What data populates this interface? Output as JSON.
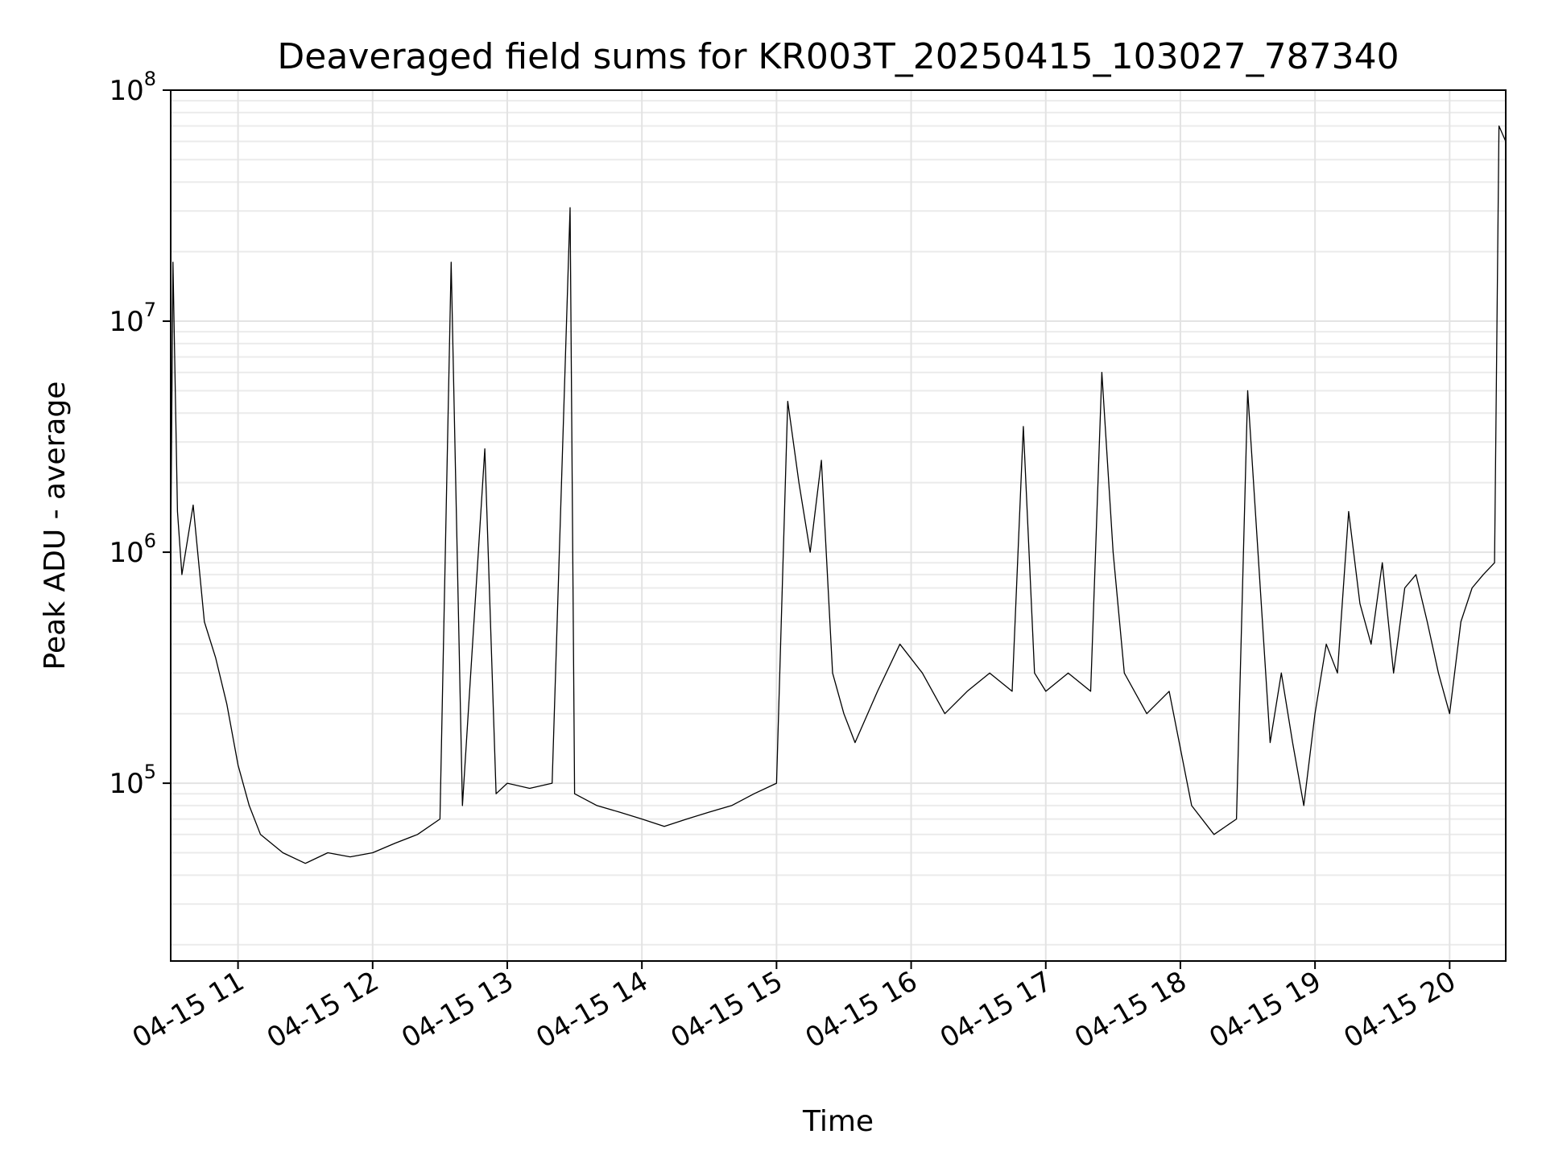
{
  "chart_data": {
    "type": "line",
    "title": "Deaveraged field sums for KR003T_20250415_103027_787340",
    "xlabel": "Time",
    "ylabel": "Peak ADU - average",
    "yscale": "log",
    "ylim": [
      17000,
      100000000
    ],
    "xlim": [
      "2025-04-15 10:30",
      "2025-04-15 20:25"
    ],
    "grid": true,
    "line_color": "#000000",
    "x_ticks": [
      "04-15 11",
      "04-15 12",
      "04-15 13",
      "04-15 14",
      "04-15 15",
      "04-15 16",
      "04-15 17",
      "04-15 18",
      "04-15 19",
      "04-15 20"
    ],
    "y_ticks": [
      {
        "value": 100000,
        "base": "10",
        "exp": "5"
      },
      {
        "value": 1000000,
        "base": "10",
        "exp": "6"
      },
      {
        "value": 10000000,
        "base": "10",
        "exp": "7"
      },
      {
        "value": 100000000,
        "base": "10",
        "exp": "8"
      }
    ],
    "series": [
      {
        "x": [
          "2025-04-15 10:30",
          "2025-04-15 10:31",
          "2025-04-15 10:33",
          "2025-04-15 10:35",
          "2025-04-15 10:40",
          "2025-04-15 10:45",
          "2025-04-15 10:50",
          "2025-04-15 10:55",
          "2025-04-15 11:00",
          "2025-04-15 11:05",
          "2025-04-15 11:10",
          "2025-04-15 11:20",
          "2025-04-15 11:30",
          "2025-04-15 11:40",
          "2025-04-15 11:50",
          "2025-04-15 12:00",
          "2025-04-15 12:10",
          "2025-04-15 12:20",
          "2025-04-15 12:30",
          "2025-04-15 12:35",
          "2025-04-15 12:40",
          "2025-04-15 12:50",
          "2025-04-15 12:55",
          "2025-04-15 13:00",
          "2025-04-15 13:10",
          "2025-04-15 13:20",
          "2025-04-15 13:28",
          "2025-04-15 13:30",
          "2025-04-15 13:40",
          "2025-04-15 13:50",
          "2025-04-15 14:00",
          "2025-04-15 14:10",
          "2025-04-15 14:20",
          "2025-04-15 14:30",
          "2025-04-15 14:40",
          "2025-04-15 14:50",
          "2025-04-15 15:00",
          "2025-04-15 15:05",
          "2025-04-15 15:10",
          "2025-04-15 15:15",
          "2025-04-15 15:20",
          "2025-04-15 15:25",
          "2025-04-15 15:30",
          "2025-04-15 15:35",
          "2025-04-15 15:45",
          "2025-04-15 15:55",
          "2025-04-15 16:05",
          "2025-04-15 16:15",
          "2025-04-15 16:25",
          "2025-04-15 16:35",
          "2025-04-15 16:45",
          "2025-04-15 16:50",
          "2025-04-15 16:55",
          "2025-04-15 17:00",
          "2025-04-15 17:10",
          "2025-04-15 17:20",
          "2025-04-15 17:25",
          "2025-04-15 17:30",
          "2025-04-15 17:35",
          "2025-04-15 17:45",
          "2025-04-15 17:55",
          "2025-04-15 18:05",
          "2025-04-15 18:15",
          "2025-04-15 18:25",
          "2025-04-15 18:30",
          "2025-04-15 18:40",
          "2025-04-15 18:45",
          "2025-04-15 18:50",
          "2025-04-15 18:55",
          "2025-04-15 19:00",
          "2025-04-15 19:05",
          "2025-04-15 19:10",
          "2025-04-15 19:15",
          "2025-04-15 19:20",
          "2025-04-15 19:25",
          "2025-04-15 19:30",
          "2025-04-15 19:35",
          "2025-04-15 19:40",
          "2025-04-15 19:45",
          "2025-04-15 19:50",
          "2025-04-15 19:55",
          "2025-04-15 20:00",
          "2025-04-15 20:05",
          "2025-04-15 20:10",
          "2025-04-15 20:15",
          "2025-04-15 20:20",
          "2025-04-15 20:22",
          "2025-04-15 20:25"
        ],
        "y": [
          1000000,
          18000000,
          1500000,
          800000,
          1600000,
          500000,
          350000,
          220000,
          120000,
          80000,
          60000,
          50000,
          45000,
          50000,
          48000,
          50000,
          55000,
          60000,
          70000,
          18000000,
          80000,
          2800000,
          90000,
          100000,
          95000,
          100000,
          31000000,
          90000,
          80000,
          75000,
          70000,
          65000,
          70000,
          75000,
          80000,
          90000,
          100000,
          4500000,
          2000000,
          1000000,
          2500000,
          300000,
          200000,
          150000,
          250000,
          400000,
          300000,
          200000,
          250000,
          300000,
          250000,
          3500000,
          300000,
          250000,
          300000,
          250000,
          6000000,
          1000000,
          300000,
          200000,
          250000,
          80000,
          60000,
          70000,
          5000000,
          150000,
          300000,
          150000,
          80000,
          200000,
          400000,
          300000,
          1500000,
          600000,
          400000,
          900000,
          300000,
          700000,
          800000,
          500000,
          300000,
          200000,
          500000,
          700000,
          800000,
          900000,
          70000000,
          60000000
        ]
      }
    ]
  }
}
